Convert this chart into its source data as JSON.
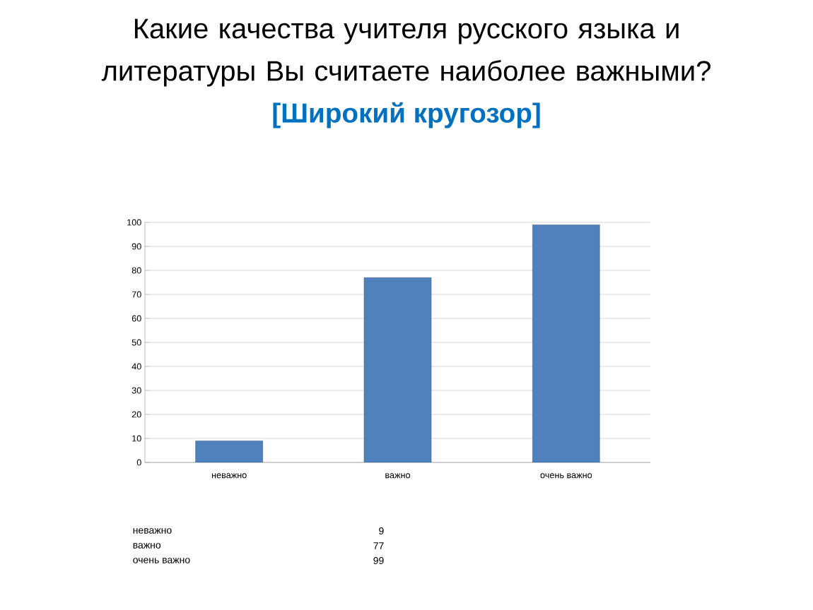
{
  "chart_data": {
    "type": "bar",
    "title": "Какие качества учителя русского языка и литературы Вы считаете наиболее важными?",
    "subtitle": "[Широкий кругозор]",
    "categories": [
      "неважно",
      "важно",
      "очень важно"
    ],
    "values": [
      9,
      77,
      99
    ],
    "color": "#4f81bd",
    "ylim": [
      0,
      100
    ],
    "yticks": [
      0,
      10,
      20,
      30,
      40,
      50,
      60,
      70,
      80,
      90,
      100
    ],
    "grid": "y",
    "annotations": [
      "неважно",
      "9",
      "важно",
      "77",
      "очень важно",
      "99"
    ]
  }
}
